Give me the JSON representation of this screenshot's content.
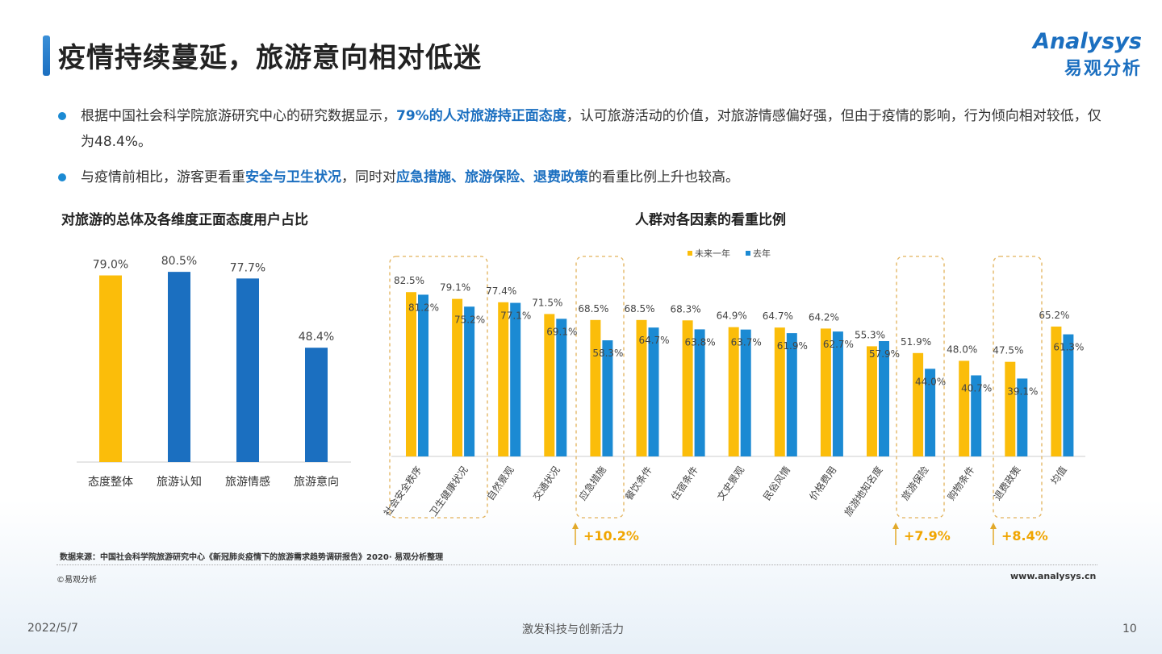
{
  "title": "疫情持续蔓延，旅游意向相对低迷",
  "logo": {
    "en": "Analysys",
    "cn": "易观分析"
  },
  "bullets": [
    {
      "parts": [
        {
          "text": "根据中国社会科学院旅游研究中心的研究数据显示，",
          "highlight": false
        },
        {
          "text": "79%的人对旅游持正面态度",
          "highlight": true
        },
        {
          "text": "，认可旅游活动的价值，对旅游情感偏好强，但由于疫情的影响，行为倾向相对较低，仅为48.4%。",
          "highlight": false
        }
      ]
    },
    {
      "parts": [
        {
          "text": "与疫情前相比，游客更看重",
          "highlight": false
        },
        {
          "text": "安全与卫生状况",
          "highlight": true
        },
        {
          "text": "，同时对",
          "highlight": false
        },
        {
          "text": "应急措施、旅游保险、退费政策",
          "highlight": true
        },
        {
          "text": "的看重比例上升也较高。",
          "highlight": false
        }
      ]
    }
  ],
  "colors": {
    "accent": "#1b6fc0",
    "yellow": "#fbbd0a",
    "blue": "#1b8ad3",
    "orange_text": "#f0a500"
  },
  "chart_data": [
    {
      "type": "bar",
      "title": "对旅游的总体及各维度正面态度用户占比",
      "categories": [
        "态度整体",
        "旅游认知",
        "旅游情感",
        "旅游意向"
      ],
      "values": [
        79.0,
        80.5,
        77.7,
        48.4
      ],
      "labels": [
        "79.0%",
        "80.5%",
        "77.7%",
        "48.4%"
      ],
      "bar_colors": [
        "#fbbd0a",
        "#1b6fc0",
        "#1b6fc0",
        "#1b6fc0"
      ],
      "ylim": [
        0,
        100
      ],
      "grid": false
    },
    {
      "type": "bar",
      "title": "人群对各因素的看重比例",
      "legend_position": "top",
      "categories": [
        "社会安全秩序",
        "卫生健康状况",
        "自然景观",
        "交通状况",
        "应急措施",
        "餐饮条件",
        "住宿条件",
        "文史景观",
        "民俗风情",
        "价格费用",
        "旅游地知名度",
        "旅游保险",
        "购物条件",
        "退费政策",
        "均值"
      ],
      "series": [
        {
          "name": "未来一年",
          "color": "#fbbd0a",
          "values": [
            82.5,
            79.1,
            77.4,
            71.5,
            68.5,
            68.5,
            68.3,
            64.9,
            64.7,
            64.2,
            55.3,
            51.9,
            48.0,
            47.5,
            65.2
          ]
        },
        {
          "name": "去年",
          "color": "#1b8ad3",
          "values": [
            81.2,
            75.2,
            77.1,
            69.1,
            58.3,
            64.7,
            63.8,
            63.7,
            61.9,
            62.7,
            57.9,
            44.0,
            40.7,
            39.1,
            61.3
          ]
        }
      ],
      "ylim": [
        0,
        100
      ],
      "grid": false,
      "annotations": [
        {
          "categories": [
            "社会安全秩序",
            "卫生健康状况"
          ],
          "text": ""
        },
        {
          "categories": [
            "应急措施"
          ],
          "text": "+10.2%"
        },
        {
          "categories": [
            "旅游保险"
          ],
          "text": "+7.9%"
        },
        {
          "categories": [
            "退费政策"
          ],
          "text": "+8.4%"
        }
      ]
    }
  ],
  "footer": {
    "source": "数据来源：中国社会科学院旅游研究中心《新冠肺炎疫情下的旅游需求趋势调研报告》2020· 易观分析整理",
    "copyright": "©易观分析",
    "url": "www.analysys.cn",
    "date": "2022/5/7",
    "slogan": "激发科技与创新活力",
    "page": "10"
  }
}
